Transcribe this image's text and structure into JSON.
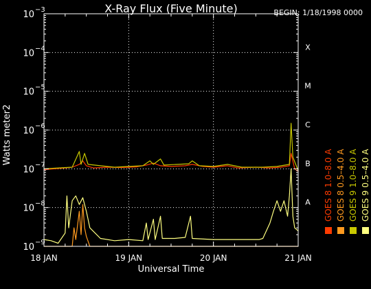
{
  "chart_data": {
    "type": "line",
    "title": "X-Ray Flux (Five Minute)",
    "begin_label": "BEGIN: 1/18/1998 0000",
    "xlabel": "Universal Time",
    "ylabel": "Watts meter2",
    "y_scale": "log",
    "ylim": [
      1e-09,
      0.001
    ],
    "xlim": [
      "1998-01-18T00:00",
      "1998-01-21T00:00"
    ],
    "x_ticks": [
      {
        "value": "1998-01-18T00:00",
        "label": "18 JAN"
      },
      {
        "value": "1998-01-19T00:00",
        "label": "19 JAN"
      },
      {
        "value": "1998-01-20T00:00",
        "label": "20 JAN"
      },
      {
        "value": "1998-01-21T00:00",
        "label": "21 JAN"
      }
    ],
    "y_ticks": [
      {
        "exp": -9,
        "base": "10",
        "sup": "−9"
      },
      {
        "exp": -8,
        "base": "10",
        "sup": "−8"
      },
      {
        "exp": -7,
        "base": "10",
        "sup": "−7"
      },
      {
        "exp": -6,
        "base": "10",
        "sup": "−6"
      },
      {
        "exp": -5,
        "base": "10",
        "sup": "−5"
      },
      {
        "exp": -4,
        "base": "10",
        "sup": "−4"
      },
      {
        "exp": -3,
        "base": "10",
        "sup": "−3"
      }
    ],
    "flare_classes": [
      {
        "label": "A",
        "value": 1e-08
      },
      {
        "label": "B",
        "value": 1e-07
      },
      {
        "label": "C",
        "value": 1e-06
      },
      {
        "label": "M",
        "value": 1e-05
      },
      {
        "label": "X",
        "value": 0.0001
      }
    ],
    "grid": "dotted",
    "legend_position": "right-vertical",
    "series": [
      {
        "name": "GOES 8 1.0–8.0 A",
        "color": "#ff3b00",
        "values": [
          [
            "1998-01-18T00:00",
            9.5e-08
          ],
          [
            "1998-01-18T03:00",
            1e-07
          ],
          [
            "1998-01-18T06:00",
            1.05e-07
          ],
          [
            "1998-01-18T08:00",
            1.1e-07
          ],
          [
            "1998-01-18T10:00",
            1.3e-07
          ],
          [
            "1998-01-18T11:00",
            1.6e-07
          ],
          [
            "1998-01-18T12:00",
            1.2e-07
          ],
          [
            "1998-01-18T14:00",
            1.05e-07
          ],
          [
            "1998-01-18T18:00",
            1.1e-07
          ],
          [
            "1998-01-18T22:00",
            1.08e-07
          ],
          [
            "1998-01-19T02:00",
            1.12e-07
          ],
          [
            "1998-01-19T05:00",
            1.25e-07
          ],
          [
            "1998-01-19T07:00",
            1.4e-07
          ],
          [
            "1998-01-19T09:00",
            1.2e-07
          ],
          [
            "1998-01-19T12:00",
            1.15e-07
          ],
          [
            "1998-01-19T16:00",
            1.2e-07
          ],
          [
            "1998-01-19T18:00",
            1.3e-07
          ],
          [
            "1998-01-19T21:00",
            1.15e-07
          ],
          [
            "1998-01-20T00:00",
            1.1e-07
          ],
          [
            "1998-01-20T04:00",
            1.2e-07
          ],
          [
            "1998-01-20T07:00",
            1.05e-07
          ],
          [
            "1998-01-20T12:00",
            1.1e-07
          ],
          [
            "1998-01-20T16:00",
            1.05e-07
          ],
          [
            "1998-01-20T19:00",
            1.1e-07
          ],
          [
            "1998-01-20T21:30",
            1.2e-07
          ],
          [
            "1998-01-20T22:00",
            2.5e-07
          ],
          [
            "1998-01-20T23:00",
            1e-07
          ],
          [
            "1998-01-21T00:00",
            8.5e-08
          ]
        ]
      },
      {
        "name": "GOES 8 0.5–4.0 A",
        "color": "#ff9a1f",
        "values": [
          [
            "1998-01-18T00:00",
            1e-09
          ],
          [
            "1998-01-18T08:00",
            1e-09
          ],
          [
            "1998-01-18T08:30",
            3e-09
          ],
          [
            "1998-01-18T09:00",
            1.5e-09
          ],
          [
            "1998-01-18T10:00",
            8e-09
          ],
          [
            "1998-01-18T10:30",
            2e-09
          ],
          [
            "1998-01-18T11:00",
            1.2e-08
          ],
          [
            "1998-01-18T11:30",
            3e-09
          ],
          [
            "1998-01-18T12:00",
            1.8e-09
          ],
          [
            "1998-01-18T13:00",
            1e-09
          ],
          [
            "1998-01-21T00:00",
            1e-09
          ]
        ]
      },
      {
        "name": "GOES 9 1.0–8.0 A",
        "color": "#c8c800",
        "values": [
          [
            "1998-01-18T00:00",
            1e-07
          ],
          [
            "1998-01-18T04:00",
            1.05e-07
          ],
          [
            "1998-01-18T08:00",
            1.1e-07
          ],
          [
            "1998-01-18T10:00",
            2.8e-07
          ],
          [
            "1998-01-18T10:30",
            1.3e-07
          ],
          [
            "1998-01-18T11:30",
            2.5e-07
          ],
          [
            "1998-01-18T12:30",
            1.3e-07
          ],
          [
            "1998-01-18T16:00",
            1.2e-07
          ],
          [
            "1998-01-18T20:00",
            1.1e-07
          ],
          [
            "1998-01-19T00:00",
            1.15e-07
          ],
          [
            "1998-01-19T04:00",
            1.2e-07
          ],
          [
            "1998-01-19T06:00",
            1.6e-07
          ],
          [
            "1998-01-19T07:00",
            1.3e-07
          ],
          [
            "1998-01-19T09:00",
            1.8e-07
          ],
          [
            "1998-01-19T10:00",
            1.25e-07
          ],
          [
            "1998-01-19T17:00",
            1.35e-07
          ],
          [
            "1998-01-19T18:00",
            1.6e-07
          ],
          [
            "1998-01-19T20:00",
            1.2e-07
          ],
          [
            "1998-01-20T00:00",
            1.15e-07
          ],
          [
            "1998-01-20T04:00",
            1.3e-07
          ],
          [
            "1998-01-20T08:00",
            1.1e-07
          ],
          [
            "1998-01-20T14:00",
            1.1e-07
          ],
          [
            "1998-01-20T18:00",
            1.15e-07
          ],
          [
            "1998-01-20T21:30",
            1.3e-07
          ],
          [
            "1998-01-20T22:00",
            1.5e-06
          ],
          [
            "1998-01-20T22:30",
            2e-07
          ],
          [
            "1998-01-21T00:00",
            9e-08
          ]
        ]
      },
      {
        "name": "GOES 9 0.5–4.0 A",
        "color": "#ffff80",
        "values": [
          [
            "1998-01-18T00:00",
            1.5e-09
          ],
          [
            "1998-01-18T02:00",
            1.4e-09
          ],
          [
            "1998-01-18T04:00",
            1.2e-09
          ],
          [
            "1998-01-18T06:00",
            2.2e-09
          ],
          [
            "1998-01-18T06:30",
            2e-08
          ],
          [
            "1998-01-18T07:00",
            3e-09
          ],
          [
            "1998-01-18T08:00",
            1.5e-08
          ],
          [
            "1998-01-18T09:00",
            2e-08
          ],
          [
            "1998-01-18T10:00",
            1.2e-08
          ],
          [
            "1998-01-18T11:00",
            1.8e-08
          ],
          [
            "1998-01-18T12:00",
            8e-09
          ],
          [
            "1998-01-18T13:00",
            3e-09
          ],
          [
            "1998-01-18T16:00",
            1.6e-09
          ],
          [
            "1998-01-18T20:00",
            1.4e-09
          ],
          [
            "1998-01-19T00:00",
            1.5e-09
          ],
          [
            "1998-01-19T04:00",
            1.4e-09
          ],
          [
            "1998-01-19T05:00",
            4e-09
          ],
          [
            "1998-01-19T05:30",
            1.5e-09
          ],
          [
            "1998-01-19T07:00",
            5e-09
          ],
          [
            "1998-01-19T07:30",
            1.5e-09
          ],
          [
            "1998-01-19T09:00",
            6e-09
          ],
          [
            "1998-01-19T09:30",
            1.6e-09
          ],
          [
            "1998-01-19T13:00",
            1.6e-09
          ],
          [
            "1998-01-19T16:00",
            1.7e-09
          ],
          [
            "1998-01-19T17:30",
            6e-09
          ],
          [
            "1998-01-19T18:00",
            1.6e-09
          ],
          [
            "1998-01-20T00:00",
            1.5e-09
          ],
          [
            "1998-01-20T05:00",
            1.5e-09
          ],
          [
            "1998-01-20T07:00",
            1.5e-09
          ],
          [
            "1998-01-20T08:00",
            1.5e-09
          ],
          [
            "1998-01-20T13:00",
            1.5e-09
          ],
          [
            "1998-01-20T14:00",
            1.6e-09
          ],
          [
            "1998-01-20T16:00",
            4e-09
          ],
          [
            "1998-01-20T17:00",
            8e-09
          ],
          [
            "1998-01-20T18:00",
            1.5e-08
          ],
          [
            "1998-01-20T19:00",
            8e-09
          ],
          [
            "1998-01-20T20:00",
            1.5e-08
          ],
          [
            "1998-01-20T21:00",
            6e-09
          ],
          [
            "1998-01-20T21:30",
            2e-08
          ],
          [
            "1998-01-20T22:00",
            1e-07
          ],
          [
            "1998-01-20T22:30",
            6e-09
          ],
          [
            "1998-01-20T23:00",
            3e-09
          ],
          [
            "1998-01-21T00:00",
            2.5e-09
          ]
        ]
      }
    ]
  }
}
